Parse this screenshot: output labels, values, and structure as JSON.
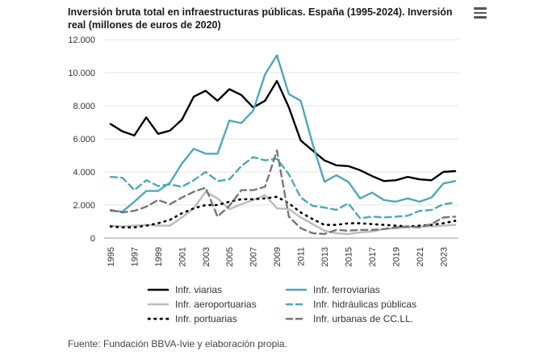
{
  "header": {
    "title": "Inversión bruta total en infraestructuras públicas. España (1995-2024). Inversión real (millones de euros de 2020)",
    "menu_icon": "hamburger-menu-icon"
  },
  "footer": {
    "source": "Fuente: Fundación BBVA-Ivie y elaboración propia."
  },
  "chart_data": {
    "type": "line",
    "title": "Inversión bruta total en infraestructuras públicas. España (1995-2024). Inversión real (millones de euros de 2020)",
    "x": [
      1995,
      1996,
      1997,
      1998,
      1999,
      2000,
      2001,
      2002,
      2003,
      2004,
      2005,
      2006,
      2007,
      2008,
      2009,
      2010,
      2011,
      2012,
      2013,
      2014,
      2015,
      2016,
      2017,
      2018,
      2019,
      2020,
      2021,
      2022,
      2023,
      2024
    ],
    "x_tick_labels": [
      "1995",
      "1997",
      "1999",
      "2001",
      "2003",
      "2005",
      "2007",
      "2009",
      "2011",
      "2013",
      "2015",
      "2017",
      "2019",
      "2021",
      "2023"
    ],
    "ylim": [
      0,
      12000
    ],
    "y_ticks": [
      0,
      2000,
      4000,
      6000,
      8000,
      10000,
      12000
    ],
    "y_tick_labels": [
      "0",
      "2.000",
      "4.000",
      "6.000",
      "8.000",
      "10.000",
      "12.000"
    ],
    "grid": "horizontal",
    "legend_position": "bottom",
    "series": [
      {
        "name": "Infr. viarias",
        "color": "#000000",
        "dash": "solid",
        "values": [
          6900,
          6450,
          6200,
          7300,
          6300,
          6500,
          7150,
          8550,
          8900,
          8300,
          9000,
          8650,
          7900,
          8300,
          9500,
          7900,
          5900,
          5300,
          4700,
          4400,
          4350,
          4100,
          3750,
          3450,
          3500,
          3700,
          3550,
          3500,
          4000,
          4050
        ]
      },
      {
        "name": "Infr. ferroviarias",
        "color": "#4da9b8",
        "dash": "solid",
        "values": [
          1650,
          1600,
          2200,
          2850,
          2850,
          3350,
          4500,
          5400,
          5100,
          5100,
          7100,
          6950,
          7700,
          9900,
          11050,
          8700,
          8300,
          5700,
          3400,
          3800,
          3400,
          2400,
          2750,
          2300,
          2200,
          2400,
          2200,
          2450,
          3300,
          3450
        ]
      },
      {
        "name": "Infr. aeroportuarias",
        "color": "#bbbbbb",
        "dash": "solid",
        "values": [
          750,
          700,
          750,
          800,
          750,
          750,
          1250,
          1800,
          2800,
          2400,
          1750,
          2050,
          2300,
          2600,
          1800,
          1750,
          1250,
          850,
          450,
          300,
          250,
          350,
          400,
          550,
          600,
          650,
          700,
          700,
          750,
          800
        ]
      },
      {
        "name": "Infr. hidráulicas públicas",
        "color": "#4da9b8",
        "dash": "dashed",
        "values": [
          3700,
          3650,
          2900,
          3500,
          3150,
          3250,
          3100,
          3500,
          4000,
          3450,
          3550,
          4350,
          4900,
          4700,
          4800,
          3850,
          2450,
          1950,
          1850,
          1700,
          2100,
          1200,
          1300,
          1250,
          1300,
          1350,
          1650,
          1700,
          2050,
          2150
        ]
      },
      {
        "name": "Infr. portuarias",
        "color": "#000000",
        "dash": "dotted",
        "values": [
          700,
          650,
          650,
          750,
          900,
          1100,
          1500,
          1800,
          2000,
          2000,
          2200,
          2350,
          2350,
          2400,
          2500,
          2100,
          1550,
          1150,
          800,
          800,
          900,
          900,
          850,
          800,
          750,
          700,
          750,
          800,
          900,
          1050
        ]
      },
      {
        "name": "Infr. urbanas de CC.LL.",
        "color": "#777777",
        "dash": "dashed",
        "values": [
          1700,
          1550,
          1650,
          1900,
          2300,
          2050,
          2450,
          2800,
          3050,
          1300,
          1950,
          2900,
          2900,
          3100,
          5300,
          1300,
          600,
          300,
          250,
          500,
          450,
          500,
          500,
          550,
          650,
          700,
          650,
          850,
          1250,
          1300
        ]
      }
    ]
  }
}
